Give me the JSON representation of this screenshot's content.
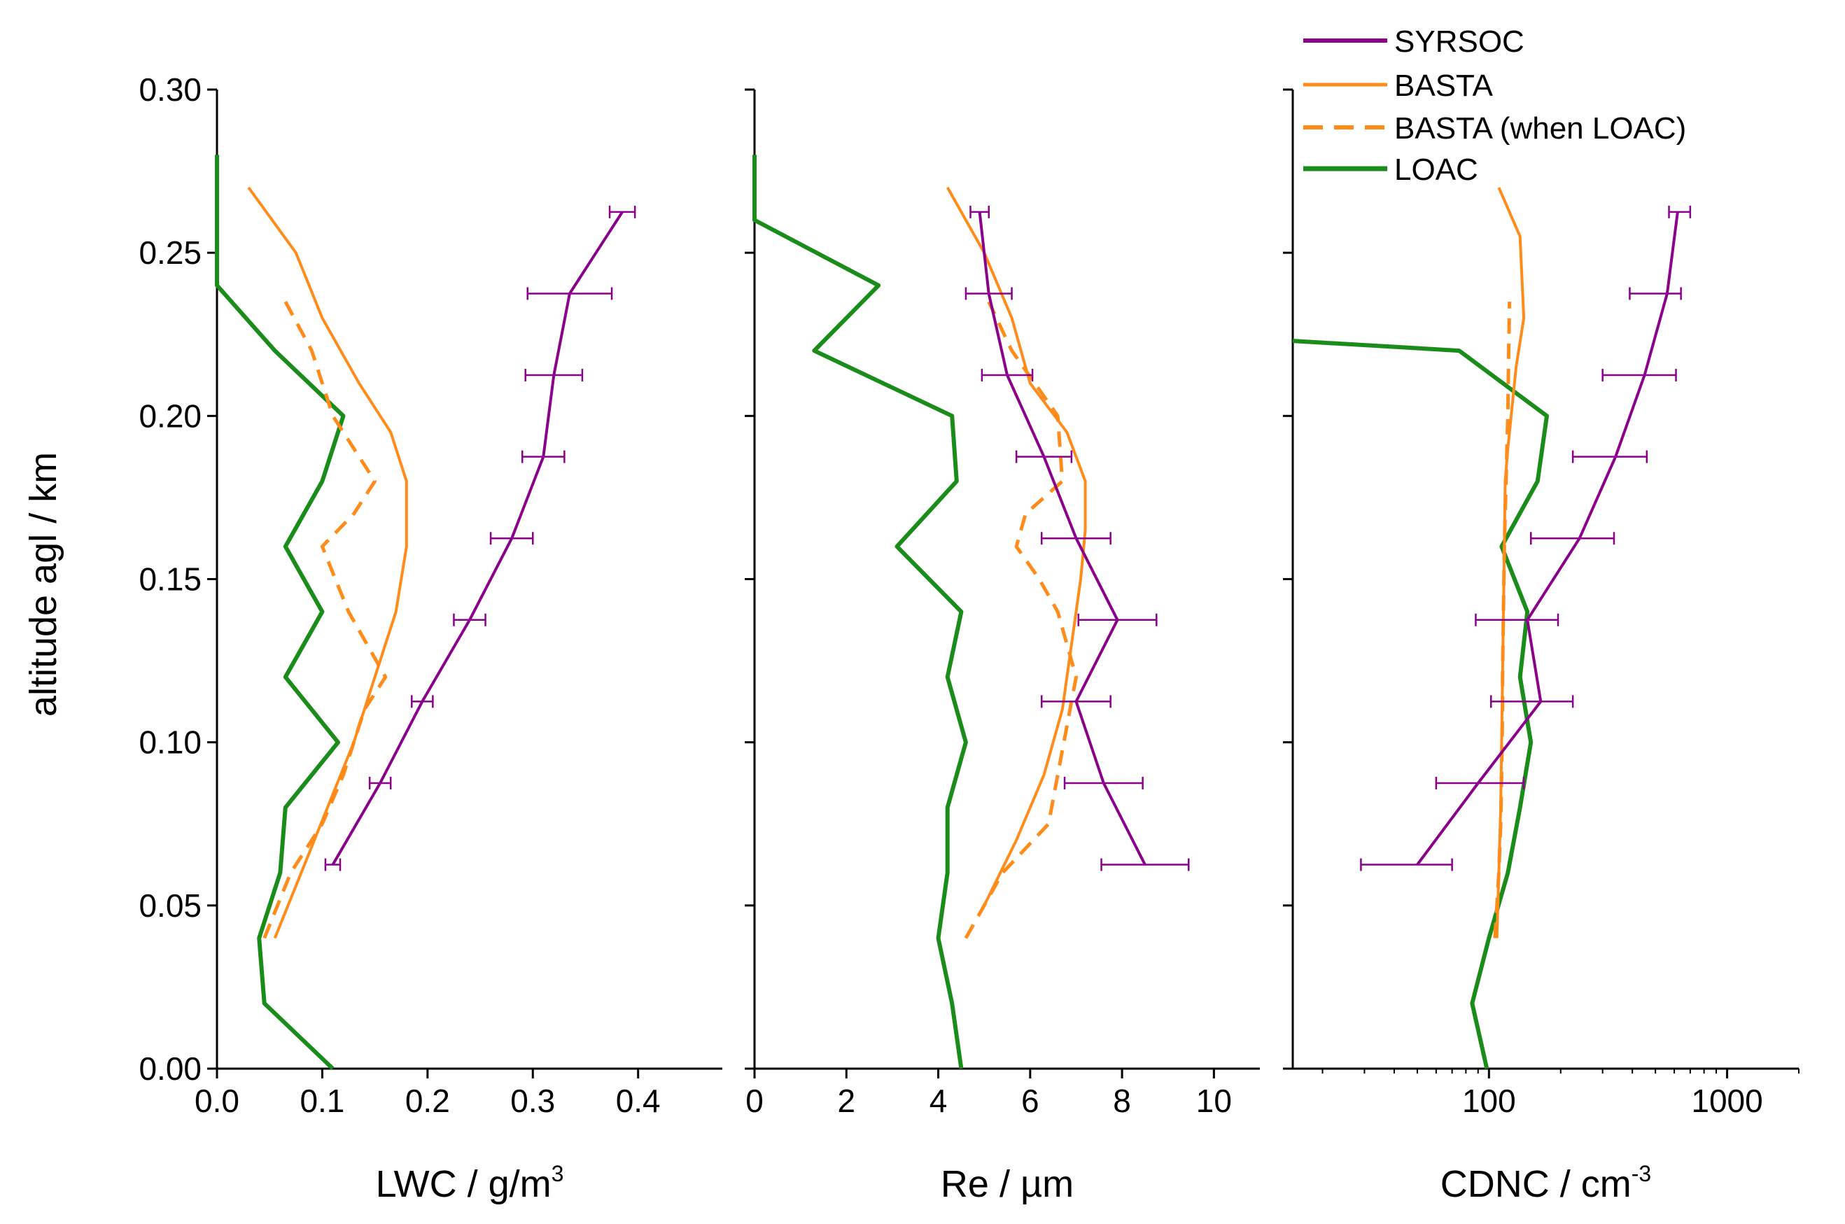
{
  "chart_data": [
    {
      "type": "line",
      "panel": "LWC",
      "xlabel": "LWC / g/m",
      "xlabel_sup": "3",
      "ylabel": "altitude agl / km",
      "xlim": [
        0,
        0.48
      ],
      "ylim": [
        0,
        0.3
      ],
      "x_ticks": [
        "0.0",
        "0.1",
        "0.2",
        "0.3",
        "0.4"
      ],
      "x_tick_values": [
        0.0,
        0.1,
        0.2,
        0.3,
        0.4
      ],
      "y_ticks": [
        "0.00",
        "0.05",
        "0.10",
        "0.15",
        "0.20",
        "0.25",
        "0.30"
      ],
      "y_tick_values": [
        0.0,
        0.05,
        0.1,
        0.15,
        0.2,
        0.25,
        0.3
      ],
      "series": [
        {
          "name": "SYRSOC",
          "style": "solid",
          "x": [
            0.11,
            0.155,
            0.195,
            0.24,
            0.28,
            0.31,
            0.32,
            0.335,
            0.385
          ],
          "y": [
            0.0625,
            0.0875,
            0.1125,
            0.1375,
            0.1625,
            0.1875,
            0.2125,
            0.2375,
            0.2625
          ],
          "xerr": [
            0.007,
            0.01,
            0.01,
            0.015,
            0.02,
            0.02,
            0.027,
            0.04,
            0.012
          ]
        },
        {
          "name": "BASTA",
          "style": "solid",
          "x": [
            0.055,
            0.08,
            0.105,
            0.13,
            0.15,
            0.17,
            0.18,
            0.18,
            0.165,
            0.135,
            0.1,
            0.075,
            0.03
          ],
          "y": [
            0.04,
            0.06,
            0.08,
            0.1,
            0.12,
            0.14,
            0.16,
            0.18,
            0.195,
            0.21,
            0.23,
            0.25,
            0.27
          ]
        },
        {
          "name": "BASTA (when LOAC)",
          "style": "dashed",
          "x": [
            0.045,
            0.07,
            0.1,
            0.12,
            0.14,
            0.16,
            0.125,
            0.1,
            0.13,
            0.15,
            0.11,
            0.09,
            0.065
          ],
          "y": [
            0.04,
            0.06,
            0.075,
            0.09,
            0.11,
            0.12,
            0.14,
            0.16,
            0.17,
            0.18,
            0.2,
            0.22,
            0.235
          ]
        },
        {
          "name": "LOAC",
          "style": "solid",
          "x": [
            0.11,
            0.045,
            0.04,
            0.06,
            0.065,
            0.115,
            0.065,
            0.1,
            0.065,
            0.1,
            0.12,
            0.055,
            0.0,
            0.0,
            0.0
          ],
          "y": [
            0.0,
            0.02,
            0.04,
            0.06,
            0.08,
            0.1,
            0.12,
            0.14,
            0.16,
            0.18,
            0.2,
            0.22,
            0.24,
            0.26,
            0.28
          ]
        }
      ]
    },
    {
      "type": "line",
      "panel": "Re",
      "xlabel": "Re / µm",
      "xlim": [
        0,
        11
      ],
      "ylim": [
        0,
        0.3
      ],
      "x_ticks": [
        "0",
        "2",
        "4",
        "6",
        "8",
        "10"
      ],
      "x_tick_values": [
        0,
        2,
        4,
        6,
        8,
        10
      ],
      "series": [
        {
          "name": "SYRSOC",
          "style": "solid",
          "x": [
            8.5,
            7.6,
            7.0,
            7.9,
            7.0,
            6.3,
            5.5,
            5.1,
            4.9
          ],
          "y": [
            0.0625,
            0.0875,
            0.1125,
            0.1375,
            0.1625,
            0.1875,
            0.2125,
            0.2375,
            0.2625
          ],
          "xerr": [
            0.95,
            0.85,
            0.75,
            0.85,
            0.75,
            0.6,
            0.55,
            0.5,
            0.2
          ]
        },
        {
          "name": "BASTA",
          "style": "solid",
          "x": [
            5.0,
            5.7,
            6.3,
            6.7,
            6.9,
            7.1,
            7.2,
            7.2,
            6.8,
            6.0,
            5.6,
            5.0,
            4.2
          ],
          "y": [
            0.05,
            0.07,
            0.09,
            0.11,
            0.13,
            0.15,
            0.165,
            0.18,
            0.195,
            0.21,
            0.23,
            0.25,
            0.27
          ]
        },
        {
          "name": "BASTA (when LOAC)",
          "style": "dashed",
          "x": [
            4.6,
            5.4,
            6.4,
            6.6,
            7.0,
            6.6,
            6.2,
            5.7,
            5.9,
            6.7,
            6.6,
            5.6,
            5.1
          ],
          "y": [
            0.04,
            0.06,
            0.075,
            0.09,
            0.12,
            0.14,
            0.15,
            0.16,
            0.17,
            0.18,
            0.2,
            0.22,
            0.235
          ]
        },
        {
          "name": "LOAC",
          "style": "solid",
          "x": [
            4.5,
            4.3,
            4.0,
            4.2,
            4.2,
            4.6,
            4.2,
            4.5,
            3.1,
            4.4,
            4.3,
            1.3,
            2.7,
            0.0,
            0.0
          ],
          "y": [
            0.0,
            0.02,
            0.04,
            0.06,
            0.08,
            0.1,
            0.12,
            0.14,
            0.16,
            0.18,
            0.2,
            0.22,
            0.24,
            0.26,
            0.28
          ]
        }
      ]
    },
    {
      "type": "line",
      "panel": "CDNC",
      "xlabel": "CDNC / cm",
      "xlabel_sup": "-3",
      "xscale": "log",
      "xlim": [
        15,
        2000
      ],
      "ylim": [
        0,
        0.3
      ],
      "x_ticks": [
        "100",
        "1000"
      ],
      "x_tick_values": [
        100,
        1000
      ],
      "series": [
        {
          "name": "SYRSOC",
          "style": "solid",
          "x": [
            50,
            90,
            165,
            145,
            240,
            340,
            450,
            560,
            620
          ],
          "y": [
            0.0625,
            0.0875,
            0.1125,
            0.1375,
            0.1625,
            0.1875,
            0.2125,
            0.2375,
            0.2625
          ],
          "xerr_low": [
            29,
            60,
            102,
            88,
            150,
            225,
            300,
            390,
            570
          ],
          "xerr_high": [
            70,
            140,
            225,
            195,
            335,
            460,
            610,
            640,
            700
          ]
        },
        {
          "name": "BASTA",
          "style": "solid",
          "x": [
            108,
            110,
            112,
            113,
            114,
            115,
            116,
            117,
            120,
            130,
            140,
            135,
            110
          ],
          "y": [
            0.04,
            0.06,
            0.08,
            0.1,
            0.12,
            0.14,
            0.16,
            0.18,
            0.19,
            0.215,
            0.23,
            0.255,
            0.27
          ]
        },
        {
          "name": "BASTA (when LOAC)",
          "style": "dashed",
          "x": [
            106,
            110,
            112,
            113,
            114,
            114,
            115,
            116,
            117,
            118,
            120,
            121,
            122
          ],
          "y": [
            0.04,
            0.06,
            0.075,
            0.09,
            0.11,
            0.12,
            0.14,
            0.16,
            0.17,
            0.18,
            0.2,
            0.22,
            0.235
          ]
        },
        {
          "name": "LOAC",
          "style": "solid",
          "x": [
            98,
            85,
            100,
            120,
            135,
            150,
            135,
            145,
            113,
            160,
            175,
            75,
            15
          ],
          "y": [
            0.0,
            0.02,
            0.04,
            0.06,
            0.08,
            0.1,
            0.12,
            0.14,
            0.16,
            0.18,
            0.2,
            0.22,
            0.223
          ]
        }
      ]
    }
  ],
  "legend": {
    "placement": "top-right",
    "items": [
      {
        "label": "SYRSOC",
        "color": "#8b008b",
        "style": "solid"
      },
      {
        "label": "BASTA",
        "color": "#ff8c1a",
        "style": "solid"
      },
      {
        "label": "BASTA (when LOAC)",
        "color": "#ff8c1a",
        "style": "dashed"
      },
      {
        "label": "LOAC",
        "color": "#1a8c1a",
        "style": "solid"
      }
    ]
  },
  "colors": {
    "SYRSOC": "#8b008b",
    "BASTA": "#ff8c1a",
    "BASTA (when LOAC)": "#ff8c1a",
    "LOAC": "#1a8c1a"
  }
}
